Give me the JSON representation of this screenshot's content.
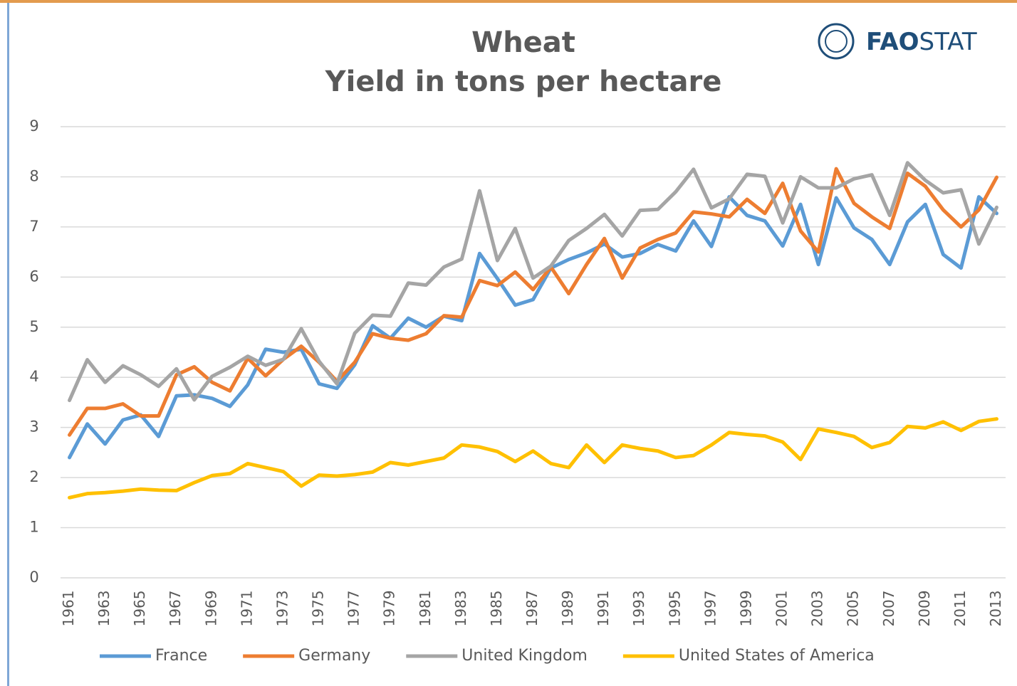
{
  "logo": {
    "bold": "FAO",
    "regular": "STAT"
  },
  "chart_data": {
    "type": "line",
    "title": "Wheat",
    "subtitle": "Yield in tons per hectare",
    "categories": [
      "1961",
      null,
      "1963",
      null,
      "1965",
      null,
      "1967",
      null,
      "1969",
      null,
      "1971",
      null,
      "1973",
      null,
      "1975",
      null,
      "1977",
      null,
      "1979",
      null,
      "1981",
      null,
      "1983",
      null,
      "1985",
      null,
      "1987",
      null,
      "1989",
      null,
      "1991",
      null,
      "1993",
      null,
      "1995",
      null,
      "1997",
      null,
      "1999",
      null,
      "2001",
      null,
      "2003",
      null,
      "2005",
      null,
      "2007",
      null,
      "2009",
      null,
      "2011",
      null,
      "2013"
    ],
    "ylim": [
      0,
      9
    ],
    "yticks": [
      0,
      1,
      2,
      3,
      4,
      5,
      6,
      7,
      8,
      9
    ],
    "grid": true,
    "legend": "bottom",
    "series": [
      {
        "name": "France",
        "color": "#5b9bd5",
        "values": [
          2.4,
          3.07,
          2.67,
          3.15,
          3.25,
          2.82,
          3.63,
          3.65,
          3.58,
          3.42,
          3.85,
          4.56,
          4.5,
          4.56,
          3.87,
          3.78,
          4.25,
          5.03,
          4.78,
          5.18,
          5.0,
          5.22,
          5.13,
          6.47,
          5.97,
          5.44,
          5.55,
          6.18,
          6.35,
          6.48,
          6.66,
          6.4,
          6.47,
          6.65,
          6.52,
          7.12,
          6.61,
          7.6,
          7.23,
          7.12,
          6.62,
          7.45,
          6.25,
          7.58,
          6.98,
          6.75,
          6.25,
          7.1,
          7.45,
          6.45,
          6.18,
          7.6,
          7.27
        ]
      },
      {
        "name": "Germany",
        "color": "#ed7d31",
        "values": [
          2.85,
          3.38,
          3.38,
          3.47,
          3.23,
          3.23,
          4.05,
          4.21,
          3.9,
          3.73,
          4.38,
          4.03,
          4.36,
          4.62,
          4.3,
          3.92,
          4.3,
          4.87,
          4.78,
          4.74,
          4.87,
          5.23,
          5.2,
          5.93,
          5.83,
          6.1,
          5.75,
          6.2,
          5.67,
          6.25,
          6.77,
          5.98,
          6.58,
          6.75,
          6.88,
          7.3,
          7.26,
          7.2,
          7.55,
          7.27,
          7.87,
          6.92,
          6.5,
          8.16,
          7.47,
          7.2,
          6.97,
          8.07,
          7.81,
          7.34,
          7.0,
          7.34,
          7.99
        ]
      },
      {
        "name": "United Kingdom",
        "color": "#a5a5a5",
        "values": [
          3.54,
          4.35,
          3.9,
          4.23,
          4.05,
          3.82,
          4.17,
          3.55,
          4.02,
          4.2,
          4.42,
          4.24,
          4.36,
          4.97,
          4.32,
          3.87,
          4.88,
          5.24,
          5.22,
          5.88,
          5.84,
          6.2,
          6.36,
          7.72,
          6.33,
          6.97,
          5.98,
          6.22,
          6.73,
          6.97,
          7.25,
          6.82,
          7.33,
          7.35,
          7.7,
          8.15,
          7.38,
          7.56,
          8.05,
          8.01,
          7.08,
          8.0,
          7.78,
          7.78,
          7.96,
          8.04,
          7.23,
          8.28,
          7.93,
          7.68,
          7.74,
          6.66,
          7.39
        ]
      },
      {
        "name": "United States of America",
        "color": "#ffc000",
        "values": [
          1.6,
          1.68,
          1.7,
          1.73,
          1.77,
          1.75,
          1.74,
          1.9,
          2.04,
          2.08,
          2.28,
          2.2,
          2.12,
          1.83,
          2.05,
          2.03,
          2.06,
          2.11,
          2.3,
          2.25,
          2.32,
          2.39,
          2.65,
          2.61,
          2.52,
          2.32,
          2.53,
          2.28,
          2.2,
          2.65,
          2.3,
          2.65,
          2.58,
          2.53,
          2.4,
          2.44,
          2.65,
          2.9,
          2.86,
          2.83,
          2.71,
          2.36,
          2.97,
          2.9,
          2.82,
          2.6,
          2.7,
          3.02,
          2.99,
          3.11,
          2.94,
          3.12,
          3.17
        ]
      }
    ]
  }
}
